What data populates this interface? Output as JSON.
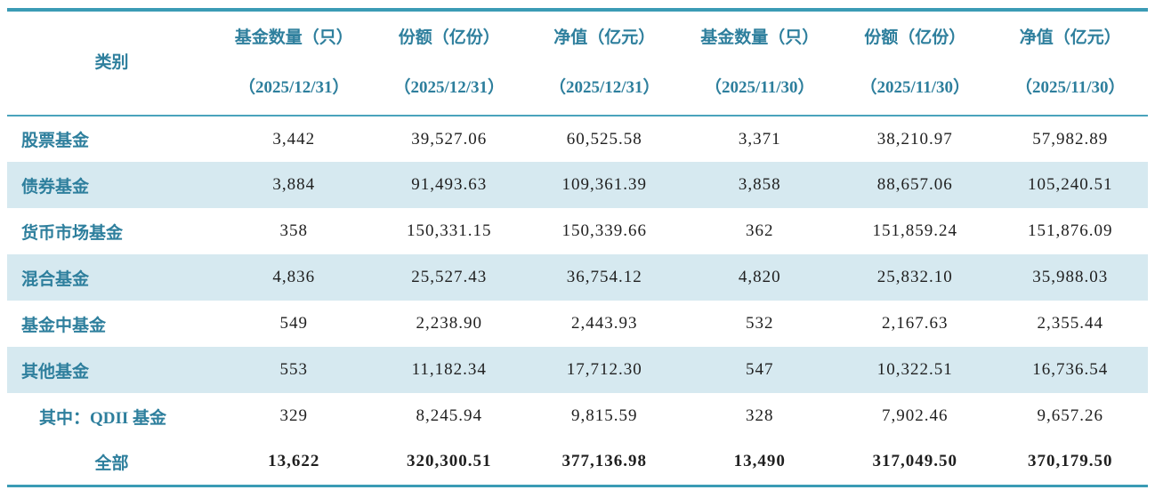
{
  "theme": {
    "accent": "#2e7f9d",
    "border": "#3b9bb5",
    "border-light": "#4aa3bc",
    "stripe": "#d6e9f0",
    "num": "#1f1f1f"
  },
  "table": {
    "columns": [
      {
        "label": "类别",
        "date": ""
      },
      {
        "label": "基金数量（只）",
        "date": "（2025/12/31）"
      },
      {
        "label": "份额（亿份）",
        "date": "（2025/12/31）"
      },
      {
        "label": "净值（亿元）",
        "date": "（2025/12/31）"
      },
      {
        "label": "基金数量（只）",
        "date": "（2025/11/30）"
      },
      {
        "label": "份额（亿份）",
        "date": "（2025/11/30）"
      },
      {
        "label": "净值（亿元）",
        "date": "（2025/11/30）"
      }
    ],
    "rows": [
      {
        "category": "股票基金",
        "is_subitem": false,
        "is_total": false,
        "values": [
          "3,442",
          "39,527.06",
          "60,525.58",
          "3,371",
          "38,210.97",
          "57,982.89"
        ]
      },
      {
        "category": "债券基金",
        "is_subitem": false,
        "is_total": false,
        "values": [
          "3,884",
          "91,493.63",
          "109,361.39",
          "3,858",
          "88,657.06",
          "105,240.51"
        ]
      },
      {
        "category": "货币市场基金",
        "is_subitem": false,
        "is_total": false,
        "values": [
          "358",
          "150,331.15",
          "150,339.66",
          "362",
          "151,859.24",
          "151,876.09"
        ]
      },
      {
        "category": "混合基金",
        "is_subitem": false,
        "is_total": false,
        "values": [
          "4,836",
          "25,527.43",
          "36,754.12",
          "4,820",
          "25,832.10",
          "35,988.03"
        ]
      },
      {
        "category": "基金中基金",
        "is_subitem": false,
        "is_total": false,
        "values": [
          "549",
          "2,238.90",
          "2,443.93",
          "532",
          "2,167.63",
          "2,355.44"
        ]
      },
      {
        "category": "其他基金",
        "is_subitem": false,
        "is_total": false,
        "values": [
          "553",
          "11,182.34",
          "17,712.30",
          "547",
          "10,322.51",
          "16,736.54"
        ]
      },
      {
        "category": "其中：QDII 基金",
        "is_subitem": true,
        "is_total": false,
        "values": [
          "329",
          "8,245.94",
          "9,815.59",
          "328",
          "7,902.46",
          "9,657.26"
        ]
      },
      {
        "category": "全部",
        "is_subitem": false,
        "is_total": true,
        "values": [
          "13,622",
          "320,300.51",
          "377,136.98",
          "13,490",
          "317,049.50",
          "370,179.50"
        ]
      }
    ]
  }
}
